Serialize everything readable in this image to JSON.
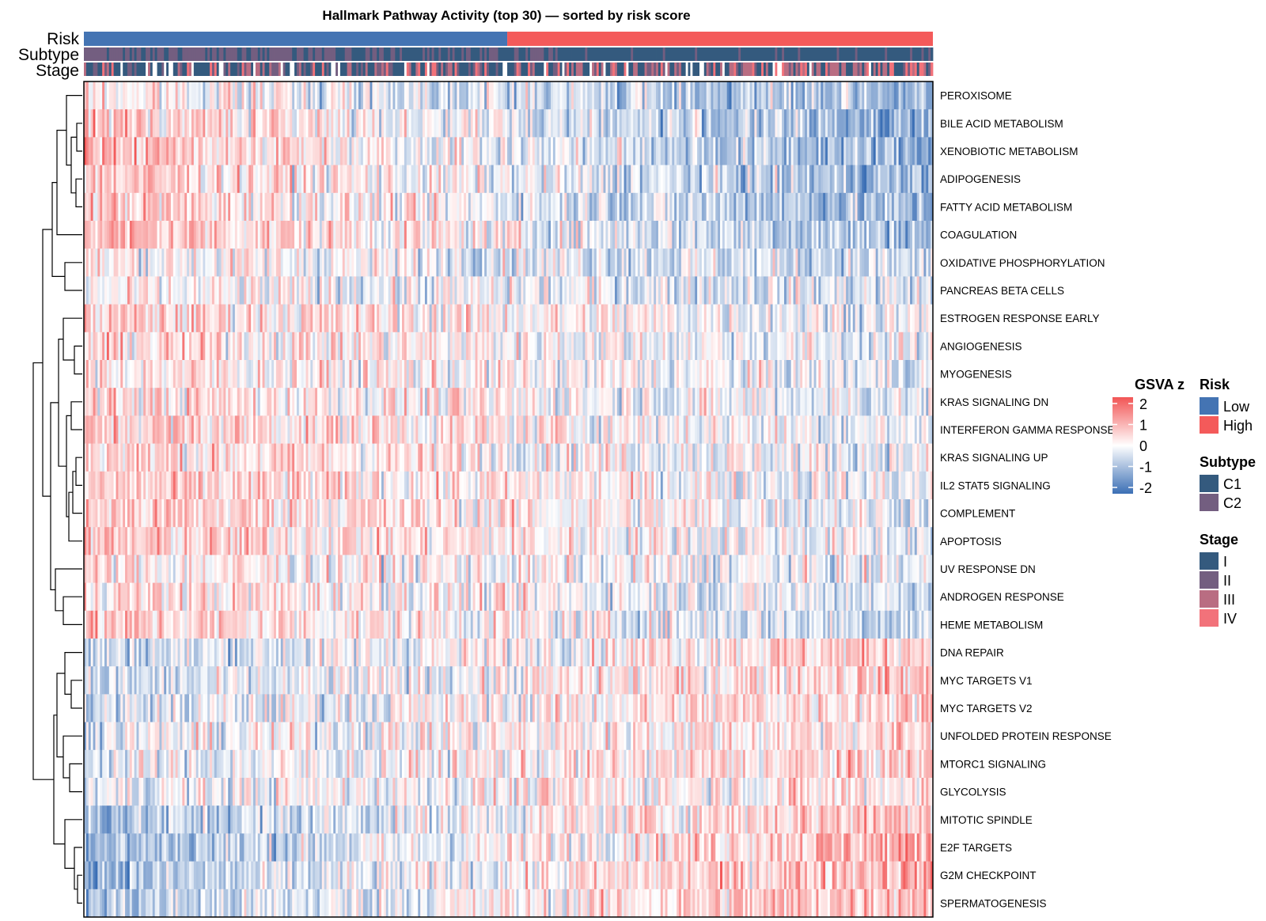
{
  "chart_data": {
    "type": "heatmap",
    "title": "Hallmark Pathway Activity (top 30) — sorted by risk score",
    "annotation_tracks": [
      "Risk",
      "Subtype",
      "Stage"
    ],
    "rows": [
      "PEROXISOME",
      "BILE ACID METABOLISM",
      "XENOBIOTIC METABOLISM",
      "ADIPOGENESIS",
      "FATTY ACID METABOLISM",
      "COAGULATION",
      "OXIDATIVE PHOSPHORYLATION",
      "PANCREAS BETA CELLS",
      "ESTROGEN RESPONSE EARLY",
      "ANGIOGENESIS",
      "MYOGENESIS",
      "KRAS SIGNALING DN",
      "INTERFERON GAMMA RESPONSE",
      "KRAS SIGNALING UP",
      "IL2 STAT5 SIGNALING",
      "COMPLEMENT",
      "APOPTOSIS",
      "UV RESPONSE DN",
      "ANDROGEN RESPONSE",
      "HEME METABOLISM",
      "DNA REPAIR",
      "MYC TARGETS V1",
      "MYC TARGETS V2",
      "UNFOLDED PROTEIN RESPONSE",
      "MTORC1 SIGNALING",
      "GLYCOLYSIS",
      "MITOTIC SPINDLE",
      "E2F TARGETS",
      "G2M CHECKPOINT",
      "SPERMATOGENESIS"
    ],
    "row_trend_low_to_high_risk": [
      [
        0.3,
        -1.2
      ],
      [
        0.8,
        -1.3
      ],
      [
        1.0,
        -1.3
      ],
      [
        0.8,
        -1.2
      ],
      [
        0.8,
        -1.2
      ],
      [
        1.0,
        -1.0
      ],
      [
        0.2,
        -0.6
      ],
      [
        0.0,
        -0.4
      ],
      [
        0.6,
        -0.2
      ],
      [
        0.5,
        -0.3
      ],
      [
        0.4,
        -0.3
      ],
      [
        0.5,
        -0.3
      ],
      [
        0.7,
        -0.2
      ],
      [
        0.6,
        -0.2
      ],
      [
        0.6,
        -0.2
      ],
      [
        0.7,
        -0.2
      ],
      [
        0.7,
        -0.2
      ],
      [
        0.3,
        -0.3
      ],
      [
        0.5,
        -0.4
      ],
      [
        0.7,
        -0.6
      ],
      [
        -0.6,
        0.8
      ],
      [
        -0.7,
        0.8
      ],
      [
        -0.5,
        0.7
      ],
      [
        -0.2,
        0.5
      ],
      [
        -0.3,
        0.6
      ],
      [
        -0.2,
        0.4
      ],
      [
        -1.0,
        1.0
      ],
      [
        -1.1,
        1.2
      ],
      [
        -1.1,
        1.2
      ],
      [
        -0.9,
        1.1
      ]
    ],
    "n_samples": 371,
    "risk_groups": [
      {
        "name": "Low",
        "count": 185
      },
      {
        "name": "High",
        "count": 186
      }
    ],
    "color_scale": {
      "name": "GSVA z",
      "range": [
        -2.3,
        2.3
      ],
      "ticks": [
        2,
        1,
        0,
        -1,
        -2
      ],
      "low": "#3b6fb5",
      "mid": "#ffffff",
      "high": "#f25555"
    },
    "legends": [
      {
        "title": "Risk",
        "items": [
          {
            "label": "Low",
            "color": "#4474b3"
          },
          {
            "label": "High",
            "color": "#f45a5a"
          }
        ]
      },
      {
        "title": "Subtype",
        "items": [
          {
            "label": "C1",
            "color": "#345a7e"
          },
          {
            "label": "C2",
            "color": "#735e80"
          }
        ]
      },
      {
        "title": "Stage",
        "items": [
          {
            "label": "I",
            "color": "#345a7e"
          },
          {
            "label": "II",
            "color": "#735e80"
          },
          {
            "label": "III",
            "color": "#b96d82"
          },
          {
            "label": "IV",
            "color": "#f2727a"
          }
        ]
      }
    ],
    "dendrogram_side": "left",
    "legend_placement": "right"
  }
}
